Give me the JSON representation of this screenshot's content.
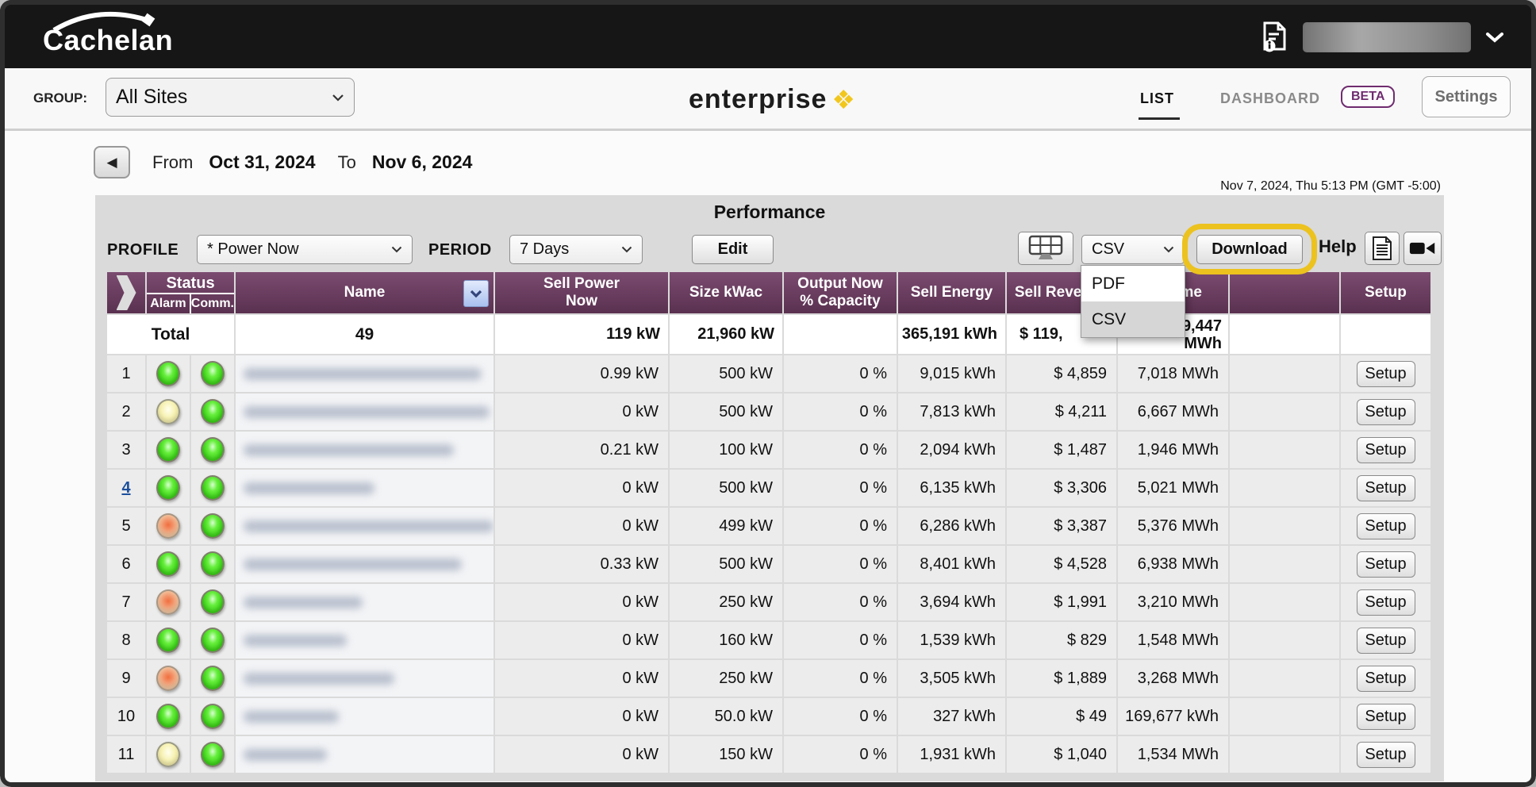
{
  "topbar": {
    "logo": "Cachelan"
  },
  "toolbar": {
    "group_label": "GROUP:",
    "group_value": "All Sites",
    "brand": "enterprise",
    "list_tab": "LIST",
    "dashboard_tab": "DASHBOARD",
    "beta_badge": "BETA",
    "settings": "Settings"
  },
  "datebar": {
    "from_label": "From",
    "from_date": "Oct 31, 2024",
    "to_label": "To",
    "to_date": "Nov 6, 2024",
    "timestamp": "Nov 7, 2024, Thu 5:13 PM (GMT -5:00)"
  },
  "panel": {
    "title": "Performance",
    "profile_label": "PROFILE",
    "profile_value": "* Power Now",
    "period_label": "PERIOD",
    "period_value": "7 Days",
    "edit_button": "Edit",
    "export_select_value": "CSV",
    "export_options": [
      "PDF",
      "CSV"
    ],
    "export_selected": "CSV",
    "download_button": "Download",
    "help_label": "Help"
  },
  "table": {
    "headers": {
      "status": "Status",
      "alarm": "Alarm",
      "comm": "Comm.",
      "name": "Name",
      "sell_power": "Sell Power\nNow",
      "size": "Size kWac",
      "output": "Output Now\n% Capacity",
      "sell_energy": "Sell Energy",
      "sell_revenue": "Sell Revenue",
      "lifetime": "Lifetime",
      "setup": "Setup"
    },
    "total": {
      "label": "Total",
      "count": "49",
      "sell_power": "119 kW",
      "size": "21,960 kW",
      "output": "",
      "sell_energy": "365,191 kWh",
      "sell_revenue_visible": "$ 119,",
      "lifetime_line1": "9,447",
      "lifetime_line2": "MWh"
    },
    "setup_button": "Setup",
    "name_redacted_widths": [
      300,
      310,
      265,
      165,
      320,
      275,
      150,
      130,
      190,
      120,
      105
    ],
    "rows": [
      {
        "num": "1",
        "num_link": false,
        "alarm": "green",
        "comm": "green",
        "sell_power": "0.99 kW",
        "size": "500 kW",
        "output": "0 %",
        "sell_energy": "9,015 kWh",
        "sell_revenue": "$ 4,859",
        "lifetime": "7,018 MWh"
      },
      {
        "num": "2",
        "num_link": false,
        "alarm": "yellow",
        "comm": "green",
        "sell_power": "0 kW",
        "size": "500 kW",
        "output": "0 %",
        "sell_energy": "7,813 kWh",
        "sell_revenue": "$ 4,211",
        "lifetime": "6,667 MWh"
      },
      {
        "num": "3",
        "num_link": false,
        "alarm": "green",
        "comm": "green",
        "sell_power": "0.21 kW",
        "size": "100 kW",
        "output": "0 %",
        "sell_energy": "2,094 kWh",
        "sell_revenue": "$ 1,487",
        "lifetime": "1,946 MWh"
      },
      {
        "num": "4",
        "num_link": true,
        "alarm": "green",
        "comm": "green",
        "sell_power": "0 kW",
        "size": "500 kW",
        "output": "0 %",
        "sell_energy": "6,135 kWh",
        "sell_revenue": "$ 3,306",
        "lifetime": "5,021 MWh"
      },
      {
        "num": "5",
        "num_link": false,
        "alarm": "orange",
        "comm": "green",
        "sell_power": "0 kW",
        "size": "499 kW",
        "output": "0 %",
        "sell_energy": "6,286 kWh",
        "sell_revenue": "$ 3,387",
        "lifetime": "5,376 MWh"
      },
      {
        "num": "6",
        "num_link": false,
        "alarm": "green",
        "comm": "green",
        "sell_power": "0.33 kW",
        "size": "500 kW",
        "output": "0 %",
        "sell_energy": "8,401 kWh",
        "sell_revenue": "$ 4,528",
        "lifetime": "6,938 MWh"
      },
      {
        "num": "7",
        "num_link": false,
        "alarm": "orange",
        "comm": "green",
        "sell_power": "0 kW",
        "size": "250 kW",
        "output": "0 %",
        "sell_energy": "3,694 kWh",
        "sell_revenue": "$ 1,991",
        "lifetime": "3,210 MWh"
      },
      {
        "num": "8",
        "num_link": false,
        "alarm": "green",
        "comm": "green",
        "sell_power": "0 kW",
        "size": "160 kW",
        "output": "0 %",
        "sell_energy": "1,539 kWh",
        "sell_revenue": "$ 829",
        "lifetime": "1,548 MWh"
      },
      {
        "num": "9",
        "num_link": false,
        "alarm": "orange",
        "comm": "green",
        "sell_power": "0 kW",
        "size": "250 kW",
        "output": "0 %",
        "sell_energy": "3,505 kWh",
        "sell_revenue": "$ 1,889",
        "lifetime": "3,268 MWh"
      },
      {
        "num": "10",
        "num_link": false,
        "alarm": "green",
        "comm": "green",
        "sell_power": "0 kW",
        "size": "50.0 kW",
        "output": "0 %",
        "sell_energy": "327 kWh",
        "sell_revenue": "$ 49",
        "lifetime": "169,677 kWh"
      },
      {
        "num": "11",
        "num_link": false,
        "alarm": "yellow",
        "comm": "green",
        "sell_power": "0 kW",
        "size": "150 kW",
        "output": "0 %",
        "sell_energy": "1,931 kWh",
        "sell_revenue": "$ 1,040",
        "lifetime": "1,534 MWh"
      }
    ]
  },
  "colors": {
    "header_purple": "#6b3f60",
    "highlight_yellow": "#ecc21e",
    "beta_purple": "#6f2c6f",
    "brand_gold": "#f2c71d",
    "led_green": "#35cc12",
    "led_yellow": "#f3ecac",
    "led_orange": "#f08050"
  }
}
